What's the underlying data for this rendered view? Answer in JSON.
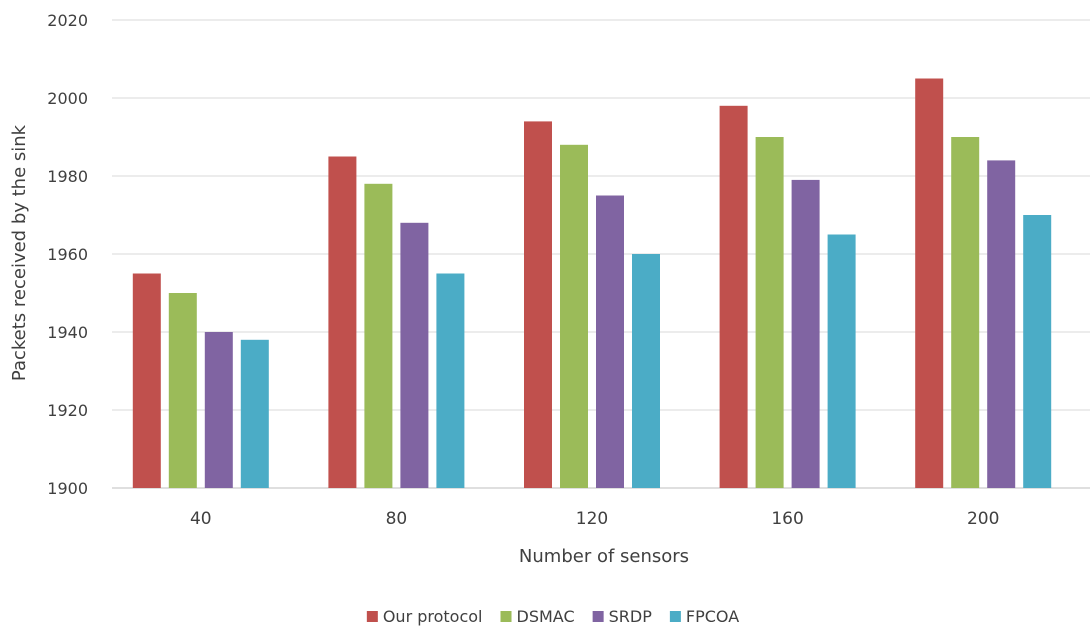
{
  "chart_data": {
    "type": "bar",
    "title": "",
    "xlabel": "Number of sensors",
    "ylabel": "Packets received by the sink",
    "categories": [
      "40",
      "80",
      "120",
      "160",
      "200"
    ],
    "ylim": [
      1900,
      2020
    ],
    "yticks": [
      1900,
      1920,
      1940,
      1960,
      1980,
      2000,
      2020
    ],
    "grid": true,
    "legend_position": "bottom",
    "series": [
      {
        "name": "Our protocol",
        "color": "#c0504d",
        "values": [
          1955,
          1985,
          1994,
          1998,
          2005
        ]
      },
      {
        "name": "DSMAC",
        "color": "#9bbb59",
        "values": [
          1950,
          1978,
          1988,
          1990,
          1990
        ]
      },
      {
        "name": "SRDP",
        "color": "#8064a2",
        "values": [
          1940,
          1968,
          1975,
          1979,
          1984
        ]
      },
      {
        "name": "FPCOA",
        "color": "#4bacc6",
        "values": [
          1938,
          1955,
          1960,
          1965,
          1970
        ]
      }
    ]
  }
}
